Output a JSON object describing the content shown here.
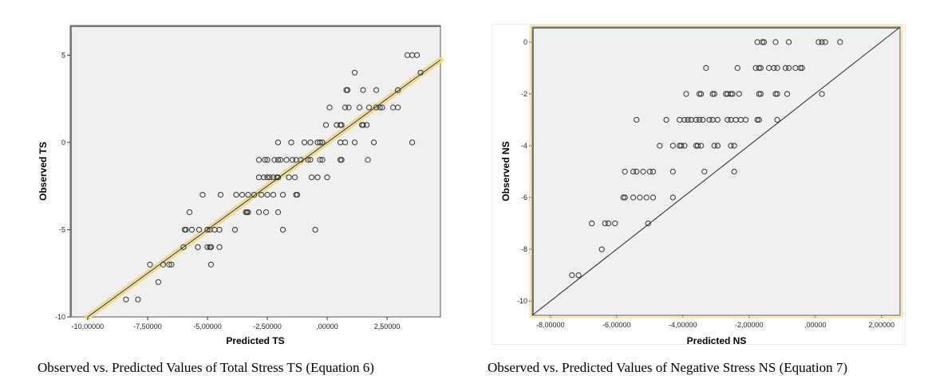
{
  "captions": {
    "left": "Observed vs. Predicted Values of Total Stress TS (Equation 6)",
    "right": "Observed vs. Predicted Values of Negative Stress NS (Equation 7)"
  },
  "colors": {
    "plot_background": "#f0f0f0",
    "frame": "#555555",
    "marker": "#333333",
    "fit_line": "#333333",
    "fit_line_halo": "#f5d76e",
    "selection_border": "#f7e39a"
  },
  "chart_data": [
    {
      "type": "scatter",
      "title": "",
      "xlabel": "Predicted TS",
      "ylabel": "Observed TS",
      "xlim": [
        -10.73,
        4.73
      ],
      "ylim": [
        -10,
        6.7
      ],
      "grid": false,
      "x_ticks": [
        -10,
        -7.5,
        -5,
        -2.5,
        0,
        2.5
      ],
      "x_tick_labels": [
        "-10,00000",
        "-7,50000",
        "-5,00000",
        "-2,50000",
        ",00000",
        "2,50000"
      ],
      "y_ticks": [
        -10,
        -5,
        0,
        5
      ],
      "y_tick_labels": [
        "-10",
        "-5",
        "0",
        "5"
      ],
      "reference_line": {
        "kind": "fit",
        "slope": 1,
        "intercept": 0,
        "from": [
          -10,
          -10
        ],
        "to": [
          4.73,
          4.73
        ],
        "highlighted": true
      },
      "points": [
        [
          3.35,
          5
        ],
        [
          3.55,
          5
        ],
        [
          3.75,
          5
        ],
        [
          1.15,
          4
        ],
        [
          3.9,
          4
        ],
        [
          0.8,
          3
        ],
        [
          0.85,
          3
        ],
        [
          1.5,
          3
        ],
        [
          2.05,
          3
        ],
        [
          2.95,
          3
        ],
        [
          0.1,
          2
        ],
        [
          0.75,
          2
        ],
        [
          0.9,
          2
        ],
        [
          1.35,
          2
        ],
        [
          1.75,
          2
        ],
        [
          2.05,
          2
        ],
        [
          2.3,
          2
        ],
        [
          2.2,
          2
        ],
        [
          2.75,
          2
        ],
        [
          2.95,
          2
        ],
        [
          -0.05,
          1
        ],
        [
          0.4,
          1
        ],
        [
          0.55,
          1
        ],
        [
          0.6,
          1
        ],
        [
          1.45,
          1
        ],
        [
          1.5,
          1
        ],
        [
          1.65,
          1
        ],
        [
          -2.05,
          0
        ],
        [
          -1.5,
          0
        ],
        [
          -0.95,
          0
        ],
        [
          -0.7,
          0
        ],
        [
          -0.4,
          0
        ],
        [
          -0.3,
          0
        ],
        [
          -0.2,
          0
        ],
        [
          0.55,
          0
        ],
        [
          0.75,
          0
        ],
        [
          1.15,
          0
        ],
        [
          1.95,
          0
        ],
        [
          3.55,
          0
        ],
        [
          -2.85,
          -1
        ],
        [
          -2.6,
          -1
        ],
        [
          -2.5,
          -1
        ],
        [
          -2.2,
          -1
        ],
        [
          -2.05,
          -1
        ],
        [
          -1.95,
          -1
        ],
        [
          -1.7,
          -1
        ],
        [
          -1.45,
          -1
        ],
        [
          -1.3,
          -1
        ],
        [
          -1.1,
          -1
        ],
        [
          -0.8,
          -1
        ],
        [
          -0.7,
          -1
        ],
        [
          -0.3,
          -1
        ],
        [
          -0.2,
          -1
        ],
        [
          0.55,
          -1
        ],
        [
          0.6,
          -1
        ],
        [
          1.7,
          -1
        ],
        [
          -2.85,
          -2
        ],
        [
          -2.65,
          -2
        ],
        [
          -2.5,
          -2
        ],
        [
          -2.4,
          -2
        ],
        [
          -2.25,
          -2
        ],
        [
          -2.1,
          -2
        ],
        [
          -2.05,
          -2
        ],
        [
          -1.6,
          -2
        ],
        [
          -1.35,
          -2
        ],
        [
          -0.65,
          -2
        ],
        [
          -0.4,
          -2
        ],
        [
          0.0,
          -2
        ],
        [
          -4.45,
          -3
        ],
        [
          -3.8,
          -3
        ],
        [
          -3.55,
          -3
        ],
        [
          -3.3,
          -3
        ],
        [
          -3.05,
          -3
        ],
        [
          -2.75,
          -3
        ],
        [
          -2.5,
          -3
        ],
        [
          -2.25,
          -3
        ],
        [
          -1.85,
          -3
        ],
        [
          -1.3,
          -3
        ],
        [
          -1.25,
          -3
        ],
        [
          -5.2,
          -3
        ],
        [
          -3.4,
          -4
        ],
        [
          -3.35,
          -4
        ],
        [
          -3.3,
          -4
        ],
        [
          -2.85,
          -4
        ],
        [
          -2.55,
          -4
        ],
        [
          -2.05,
          -4
        ],
        [
          -5.75,
          -4
        ],
        [
          -5.95,
          -5
        ],
        [
          -5.9,
          -5
        ],
        [
          -5.65,
          -5
        ],
        [
          -5.35,
          -5
        ],
        [
          -5.0,
          -5
        ],
        [
          -4.9,
          -5
        ],
        [
          -4.7,
          -5
        ],
        [
          -4.5,
          -5
        ],
        [
          -3.85,
          -5
        ],
        [
          -1.85,
          -5
        ],
        [
          -0.5,
          -5
        ],
        [
          -6.0,
          -6
        ],
        [
          -5.4,
          -6
        ],
        [
          -5.0,
          -6
        ],
        [
          -4.9,
          -6
        ],
        [
          -4.85,
          -6
        ],
        [
          -4.5,
          -6
        ],
        [
          -7.4,
          -7
        ],
        [
          -6.85,
          -7
        ],
        [
          -6.6,
          -7
        ],
        [
          -6.5,
          -7
        ],
        [
          -4.85,
          -7
        ],
        [
          -7.05,
          -8
        ],
        [
          -8.4,
          -9
        ],
        [
          -7.9,
          -9
        ]
      ]
    },
    {
      "type": "scatter",
      "title": "",
      "xlabel": "Predicted NS",
      "ylabel": "Observed NS",
      "xlim": [
        -8.55,
        2.56
      ],
      "ylim": [
        -10.55,
        0.58
      ],
      "grid": false,
      "x_ticks": [
        -8,
        -6,
        -4,
        -2,
        0,
        2
      ],
      "x_tick_labels": [
        "-8,00000",
        "-6,00000",
        "-4,00000",
        "-2,00000",
        ",00000",
        "2,00000"
      ],
      "y_ticks": [
        -10,
        -8,
        -6,
        -4,
        -2,
        0
      ],
      "y_tick_labels": [
        "-10",
        "-8",
        "-6",
        "-4",
        "-2",
        "0"
      ],
      "reference_line": {
        "kind": "identity",
        "slope": 1,
        "intercept": 0,
        "from": [
          -8.55,
          -10.55
        ],
        "to": [
          2.56,
          0.58
        ],
        "highlighted": false
      },
      "points": [
        [
          -1.75,
          0
        ],
        [
          -1.6,
          0
        ],
        [
          -1.55,
          0
        ],
        [
          -1.2,
          0
        ],
        [
          -0.8,
          0
        ],
        [
          0.1,
          0
        ],
        [
          0.2,
          0
        ],
        [
          0.3,
          0
        ],
        [
          0.75,
          0
        ],
        [
          -3.3,
          -1
        ],
        [
          -2.35,
          -1
        ],
        [
          -1.8,
          -1
        ],
        [
          -1.7,
          -1
        ],
        [
          -1.65,
          -1
        ],
        [
          -1.4,
          -1
        ],
        [
          -1.25,
          -1
        ],
        [
          -1.15,
          -1
        ],
        [
          -0.9,
          -1
        ],
        [
          -0.8,
          -1
        ],
        [
          -0.6,
          -1
        ],
        [
          -0.45,
          -1
        ],
        [
          -0.4,
          -1
        ],
        [
          -3.9,
          -2
        ],
        [
          -3.5,
          -2
        ],
        [
          -3.45,
          -2
        ],
        [
          -3.1,
          -2
        ],
        [
          -3.05,
          -2
        ],
        [
          -2.7,
          -2
        ],
        [
          -2.65,
          -2
        ],
        [
          -2.55,
          -2
        ],
        [
          -2.5,
          -2
        ],
        [
          -2.3,
          -2
        ],
        [
          -1.7,
          -2
        ],
        [
          -1.65,
          -2
        ],
        [
          -1.2,
          -2
        ],
        [
          -1.15,
          -2
        ],
        [
          -0.85,
          -2
        ],
        [
          0.2,
          -2
        ],
        [
          -5.4,
          -3
        ],
        [
          -4.5,
          -3
        ],
        [
          -4.1,
          -3
        ],
        [
          -3.95,
          -3
        ],
        [
          -3.85,
          -3
        ],
        [
          -3.75,
          -3
        ],
        [
          -3.6,
          -3
        ],
        [
          -3.5,
          -3
        ],
        [
          -3.4,
          -3
        ],
        [
          -3.2,
          -3
        ],
        [
          -3.1,
          -3
        ],
        [
          -2.95,
          -3
        ],
        [
          -2.65,
          -3
        ],
        [
          -2.55,
          -3
        ],
        [
          -2.4,
          -3
        ],
        [
          -2.25,
          -3
        ],
        [
          -2.1,
          -3
        ],
        [
          -1.75,
          -3
        ],
        [
          -1.7,
          -3
        ],
        [
          -1.15,
          -3
        ],
        [
          -4.7,
          -4
        ],
        [
          -4.3,
          -4
        ],
        [
          -4.1,
          -4
        ],
        [
          -4.05,
          -4
        ],
        [
          -3.95,
          -4
        ],
        [
          -3.6,
          -4
        ],
        [
          -3.55,
          -4
        ],
        [
          -3.45,
          -4
        ],
        [
          -3.05,
          -4
        ],
        [
          -2.95,
          -4
        ],
        [
          -2.55,
          -4
        ],
        [
          -2.45,
          -4
        ],
        [
          -5.75,
          -5
        ],
        [
          -5.5,
          -5
        ],
        [
          -5.4,
          -5
        ],
        [
          -5.2,
          -5
        ],
        [
          -5.0,
          -5
        ],
        [
          -4.9,
          -5
        ],
        [
          -4.3,
          -5
        ],
        [
          -3.35,
          -5
        ],
        [
          -2.45,
          -5
        ],
        [
          -5.8,
          -6
        ],
        [
          -5.75,
          -6
        ],
        [
          -5.5,
          -6
        ],
        [
          -5.3,
          -6
        ],
        [
          -5.1,
          -6
        ],
        [
          -4.9,
          -6
        ],
        [
          -4.3,
          -6
        ],
        [
          -6.75,
          -7
        ],
        [
          -6.35,
          -7
        ],
        [
          -6.25,
          -7
        ],
        [
          -6.05,
          -7
        ],
        [
          -5.05,
          -7
        ],
        [
          -6.45,
          -8
        ],
        [
          -7.35,
          -9
        ],
        [
          -7.15,
          -9
        ]
      ]
    }
  ]
}
